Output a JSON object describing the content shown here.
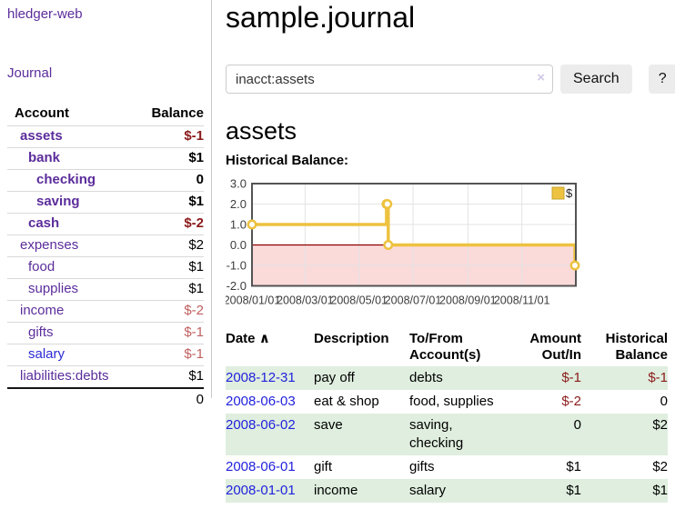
{
  "app": {
    "title": "hledger-web"
  },
  "sidebar": {
    "journal_label": "Journal",
    "accounts": {
      "headers": {
        "account": "Account",
        "balance": "Balance"
      },
      "rows": [
        {
          "name": "assets",
          "indent": 0,
          "bold": true,
          "balance": "$-1",
          "neg": "strong"
        },
        {
          "name": "bank",
          "indent": 1,
          "bold": true,
          "balance": "$1"
        },
        {
          "name": "checking",
          "indent": 2,
          "bold": true,
          "balance": "0"
        },
        {
          "name": "saving",
          "indent": 2,
          "bold": true,
          "balance": "$1"
        },
        {
          "name": "cash",
          "indent": 1,
          "bold": true,
          "balance": "$-2",
          "neg": "strong"
        },
        {
          "name": "expenses",
          "indent": 0,
          "bold": false,
          "balance": "$2"
        },
        {
          "name": "food",
          "indent": 1,
          "bold": false,
          "balance": "$1"
        },
        {
          "name": "supplies",
          "indent": 1,
          "bold": false,
          "balance": "$1"
        },
        {
          "name": "income",
          "indent": 0,
          "bold": false,
          "balance": "$-2",
          "neg": "soft"
        },
        {
          "name": "gifts",
          "indent": 1,
          "bold": false,
          "balance": "$-1",
          "neg": "soft"
        },
        {
          "name": "salary",
          "indent": 1,
          "bold": false,
          "balance": "$-1",
          "neg": "soft",
          "blue": true
        },
        {
          "name": "liabilities:debts",
          "indent": 0,
          "bold": false,
          "balance": "$1"
        }
      ],
      "total": "0"
    }
  },
  "main": {
    "title": "sample.journal",
    "search": {
      "value": "inacct:assets",
      "clear_icon": "×",
      "button_label": "Search",
      "help_label": "?"
    },
    "account_heading": "assets",
    "chart_label": "Historical Balance:",
    "register": {
      "headers": {
        "date": "Date",
        "description": "Description",
        "accounts": "To/From Account(s)",
        "amount": "Amount Out/In",
        "balance": "Historical Balance"
      },
      "sort_indicator": "∧",
      "rows": [
        {
          "date": "2008-12-31",
          "description": "pay off",
          "accounts": "debts",
          "amount": "$-1",
          "amount_neg": true,
          "balance": "$-1",
          "balance_neg": true
        },
        {
          "date": "2008-06-03",
          "description": "eat & shop",
          "accounts": "food, supplies",
          "amount": "$-2",
          "amount_neg": true,
          "balance": "0",
          "balance_neg": false
        },
        {
          "date": "2008-06-02",
          "description": "save",
          "accounts": "saving, checking",
          "amount": "0",
          "amount_neg": false,
          "balance": "$2",
          "balance_neg": false
        },
        {
          "date": "2008-06-01",
          "description": "gift",
          "accounts": "gifts",
          "amount": "$1",
          "amount_neg": false,
          "balance": "$2",
          "balance_neg": false
        },
        {
          "date": "2008-01-01",
          "description": "income",
          "accounts": "salary",
          "amount": "$1",
          "amount_neg": false,
          "balance": "$1",
          "balance_neg": false
        }
      ]
    }
  },
  "chart_data": {
    "type": "line",
    "title": "Historical Balance:",
    "step": true,
    "series": [
      {
        "name": "$",
        "points": [
          [
            "2008-01-01",
            1
          ],
          [
            "2008-06-01",
            2
          ],
          [
            "2008-06-02",
            2
          ],
          [
            "2008-06-03",
            0
          ],
          [
            "2008-12-31",
            -1
          ]
        ]
      }
    ],
    "xlim": [
      "2008-01-01",
      "2009-01-01"
    ],
    "ylim": [
      -2,
      3
    ],
    "yticks": [
      3,
      2,
      1,
      0,
      -1,
      -2
    ],
    "xticks": [
      "2008/01/01",
      "2008/03/01",
      "2008/05/01",
      "2008/07/01",
      "2008/09/01",
      "2008/11/01"
    ],
    "legend": {
      "label": "$",
      "position": "top-right"
    },
    "grid": true,
    "line_color": "#edc240",
    "negative_region_fill": "#fbdada",
    "zero_line_color": "#8b0000",
    "border_color": "#545454",
    "grid_color": "#e3e3e3",
    "tick_label_color": "#3c3c3c"
  },
  "colors": {
    "link_purple": "#5b2d9b",
    "link_blue": "#2b2bd5",
    "negative_strong": "#8b1a1a",
    "negative_soft": "#c05f5f",
    "row_green": "#dfeede"
  }
}
